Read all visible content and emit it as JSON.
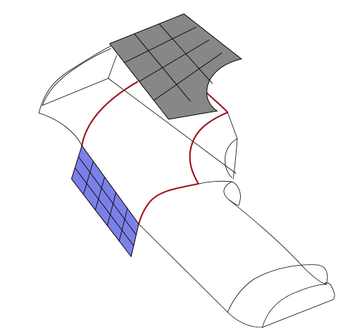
{
  "colors": {
    "background": "#ffffff",
    "outline": "#000000",
    "seam": "#a01820",
    "top_patch": "#878787",
    "side_patch": "#7b80e6"
  },
  "patches": {
    "top": {
      "rows": 4,
      "cols": 3
    },
    "side": {
      "rows": 5,
      "cols": 3
    }
  }
}
